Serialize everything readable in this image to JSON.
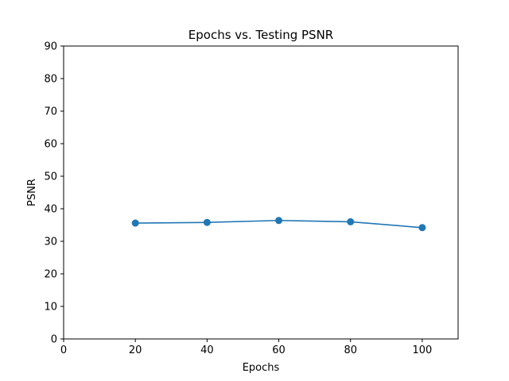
{
  "chart_data": {
    "type": "line",
    "title": "Epochs vs. Testing PSNR",
    "xlabel": "Epochs",
    "ylabel": "PSNR",
    "xlim": [
      0,
      110
    ],
    "ylim": [
      0,
      90
    ],
    "xticks": [
      0,
      20,
      40,
      60,
      80,
      100
    ],
    "yticks": [
      0,
      10,
      20,
      30,
      40,
      50,
      60,
      70,
      80,
      90
    ],
    "grid": false,
    "series": [
      {
        "x": [
          20,
          40,
          60,
          80,
          100
        ],
        "values": [
          35.6,
          35.8,
          36.4,
          36.0,
          34.2
        ],
        "color": "#1f77b4",
        "marker": "circle"
      }
    ]
  }
}
